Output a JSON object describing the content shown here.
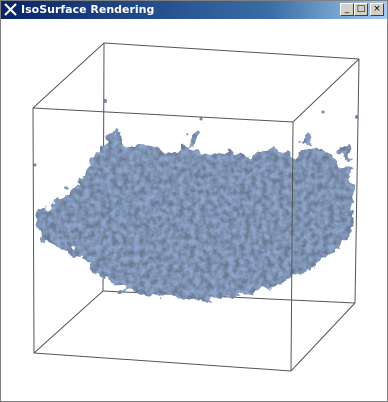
{
  "window": {
    "title": "IsoSurface Rendering"
  }
}
